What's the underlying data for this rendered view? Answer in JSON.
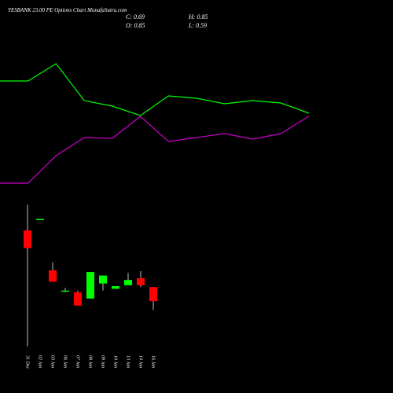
{
  "chart_data": [
    {
      "type": "candlestick",
      "title": "YESBANK 23.00 PE Options Chart MunafaSutra.com",
      "annotations": [
        "C: 0.69",
        "H: 0.85",
        "O: 0.85",
        "L: 0.59"
      ],
      "categories": [
        "31 Dec",
        "02 Jan",
        "03 Jan",
        "06 Jan",
        "07 Jan",
        "08 Jan",
        "09 Jan",
        "10 Jan",
        "13 Jan",
        "14 Jan",
        "16 Jan"
      ],
      "open": [
        1.49,
        1.62,
        1.04,
        0.81,
        0.79,
        0.72,
        0.89,
        0.83,
        0.87,
        0.95,
        0.85
      ],
      "high": [
        1.78,
        1.62,
        1.13,
        0.84,
        0.81,
        1.02,
        0.98,
        0.86,
        1.01,
        1.03,
        0.85
      ],
      "low": [
        0.18,
        1.62,
        0.91,
        0.79,
        0.64,
        0.72,
        0.81,
        0.83,
        0.87,
        0.85,
        0.59
      ],
      "close": [
        1.29,
        1.62,
        0.91,
        0.81,
        0.64,
        1.02,
        0.98,
        0.86,
        0.93,
        0.87,
        0.69
      ],
      "up_color": "#00ff00",
      "down_color": "#ff0000",
      "wick_color": "#bbbbbb",
      "ylim": [
        0.14,
        1.83
      ]
    },
    {
      "type": "line",
      "x": [
        0,
        1,
        2,
        3,
        4,
        5,
        6,
        7,
        8,
        9,
        10,
        11
      ],
      "series": [
        {
          "color": "#00ff00",
          "values": [
            78.5,
            78.5,
            89.5,
            66,
            62.5,
            56.5,
            69,
            67.5,
            64,
            66,
            64.5,
            58
          ]
        },
        {
          "color": "#cc00cc",
          "values": [
            13.5,
            13.5,
            31,
            42.5,
            42,
            56,
            40,
            42.5,
            45,
            41.5,
            45,
            56
          ]
        }
      ],
      "xlim": [
        0,
        14
      ],
      "ylim": [
        0,
        100
      ]
    }
  ]
}
